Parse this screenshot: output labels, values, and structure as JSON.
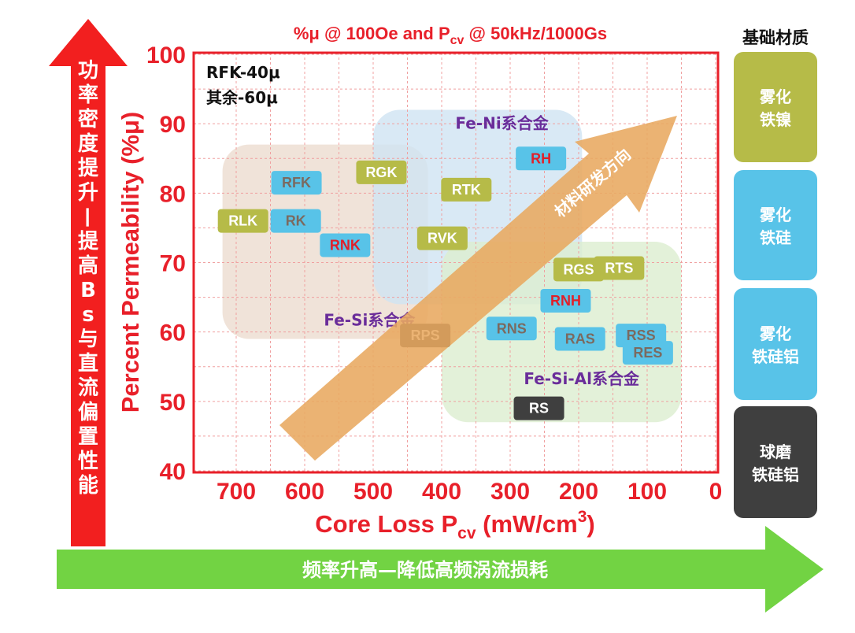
{
  "chart_data": {
    "type": "scatter",
    "title": "%μ @ 100Oe and P_cv @ 50kHz/1000Gs",
    "title_parts": {
      "pre": "%μ @ 100Oe and P",
      "sub": "cv",
      "post": " @ 50kHz/1000Gs"
    },
    "xlabel": "Core Loss P_cv (mW/cm3)",
    "xlabel_parts": {
      "pre": "Core Loss P",
      "sub": "cv",
      "mid": " (mW/cm",
      "sup": "3",
      "post": ")"
    },
    "ylabel": "Percent Permeability (%μ)",
    "xlim": [
      0,
      750
    ],
    "ylim": [
      40,
      100
    ],
    "x_reversed": true,
    "x_ticks": [
      700,
      600,
      500,
      400,
      300,
      200,
      100,
      0
    ],
    "y_ticks": [
      40,
      50,
      60,
      70,
      80,
      90,
      100
    ],
    "grid": true,
    "notes": [
      "RFK-40μ",
      "其余-60μ"
    ],
    "regions": [
      {
        "label": "Fe-Si系合金",
        "x": [
          720,
          420
        ],
        "y": [
          59,
          87
        ],
        "color": "#ecdcd0"
      },
      {
        "label": "Fe-Ni系合金",
        "x": [
          500,
          195
        ],
        "y": [
          64,
          92
        ],
        "color": "#cfe4f2"
      },
      {
        "label": "Fe-Si-Al系合金",
        "x": [
          400,
          50
        ],
        "y": [
          47,
          73
        ],
        "color": "#dcedd0"
      }
    ],
    "points": [
      {
        "name": "RFK",
        "x": 612,
        "y": 81.5,
        "material": "雾化铁硅"
      },
      {
        "name": "RLK",
        "x": 690,
        "y": 76,
        "material": "雾化铁镍"
      },
      {
        "name": "RK",
        "x": 613,
        "y": 76,
        "material": "雾化铁硅"
      },
      {
        "name": "RGK",
        "x": 488,
        "y": 83,
        "material": "雾化铁镍"
      },
      {
        "name": "RTK",
        "x": 364,
        "y": 80.5,
        "material": "雾化铁镍"
      },
      {
        "name": "RH",
        "x": 255,
        "y": 85,
        "material": "雾化铁硅铝"
      },
      {
        "name": "RVK",
        "x": 399,
        "y": 73.5,
        "material": "雾化铁镍"
      },
      {
        "name": "RNK",
        "x": 541,
        "y": 72.5,
        "material": "雾化铁硅铝"
      },
      {
        "name": "RGS",
        "x": 200,
        "y": 69,
        "material": "雾化铁镍"
      },
      {
        "name": "RTS",
        "x": 141,
        "y": 69.2,
        "material": "雾化铁镍"
      },
      {
        "name": "RNH",
        "x": 219,
        "y": 64.5,
        "material": "雾化铁硅铝"
      },
      {
        "name": "RNS",
        "x": 298,
        "y": 60.5,
        "material": "雾化铁硅"
      },
      {
        "name": "RPS",
        "x": 424,
        "y": 59.5,
        "material": "球磨铁硅铝"
      },
      {
        "name": "RAS",
        "x": 198,
        "y": 59,
        "material": "雾化铁硅"
      },
      {
        "name": "RSS",
        "x": 109,
        "y": 59.5,
        "material": "雾化铁硅"
      },
      {
        "name": "RES",
        "x": 99,
        "y": 57,
        "material": "雾化铁硅"
      },
      {
        "name": "RS",
        "x": 258,
        "y": 49,
        "material": "球磨铁硅铝"
      }
    ],
    "trend_arrow_label": "材料研发方向"
  },
  "left_arrow": {
    "text": "功率密度提升—提高Bs与直流偏置性能",
    "color": "#f21f1f"
  },
  "bottom_arrow": {
    "text": "频率升高—降低高频涡流损耗",
    "color": "#72d343"
  },
  "legend": {
    "title": "基础材质",
    "items": [
      {
        "key": "雾化铁镍",
        "lines": [
          "雾化",
          "铁镍"
        ],
        "color": "#b6bb48",
        "label_color": "#ffffff"
      },
      {
        "key": "雾化铁硅",
        "lines": [
          "雾化",
          "铁硅"
        ],
        "color": "#58c3e8",
        "label_color": "#7b6a60"
      },
      {
        "key": "雾化铁硅铝",
        "lines": [
          "雾化",
          "铁硅铝"
        ],
        "color": "#58c3e8",
        "label_color": "#e0202a"
      },
      {
        "key": "球磨铁硅铝",
        "lines": [
          "球磨",
          "铁硅铝"
        ],
        "color": "#3f3f3f",
        "label_color": "#ffffff"
      }
    ]
  },
  "colors": {
    "axis": "#e8202a",
    "trend_arrow": "#e8a860",
    "region_label": "#6a2d9a"
  }
}
